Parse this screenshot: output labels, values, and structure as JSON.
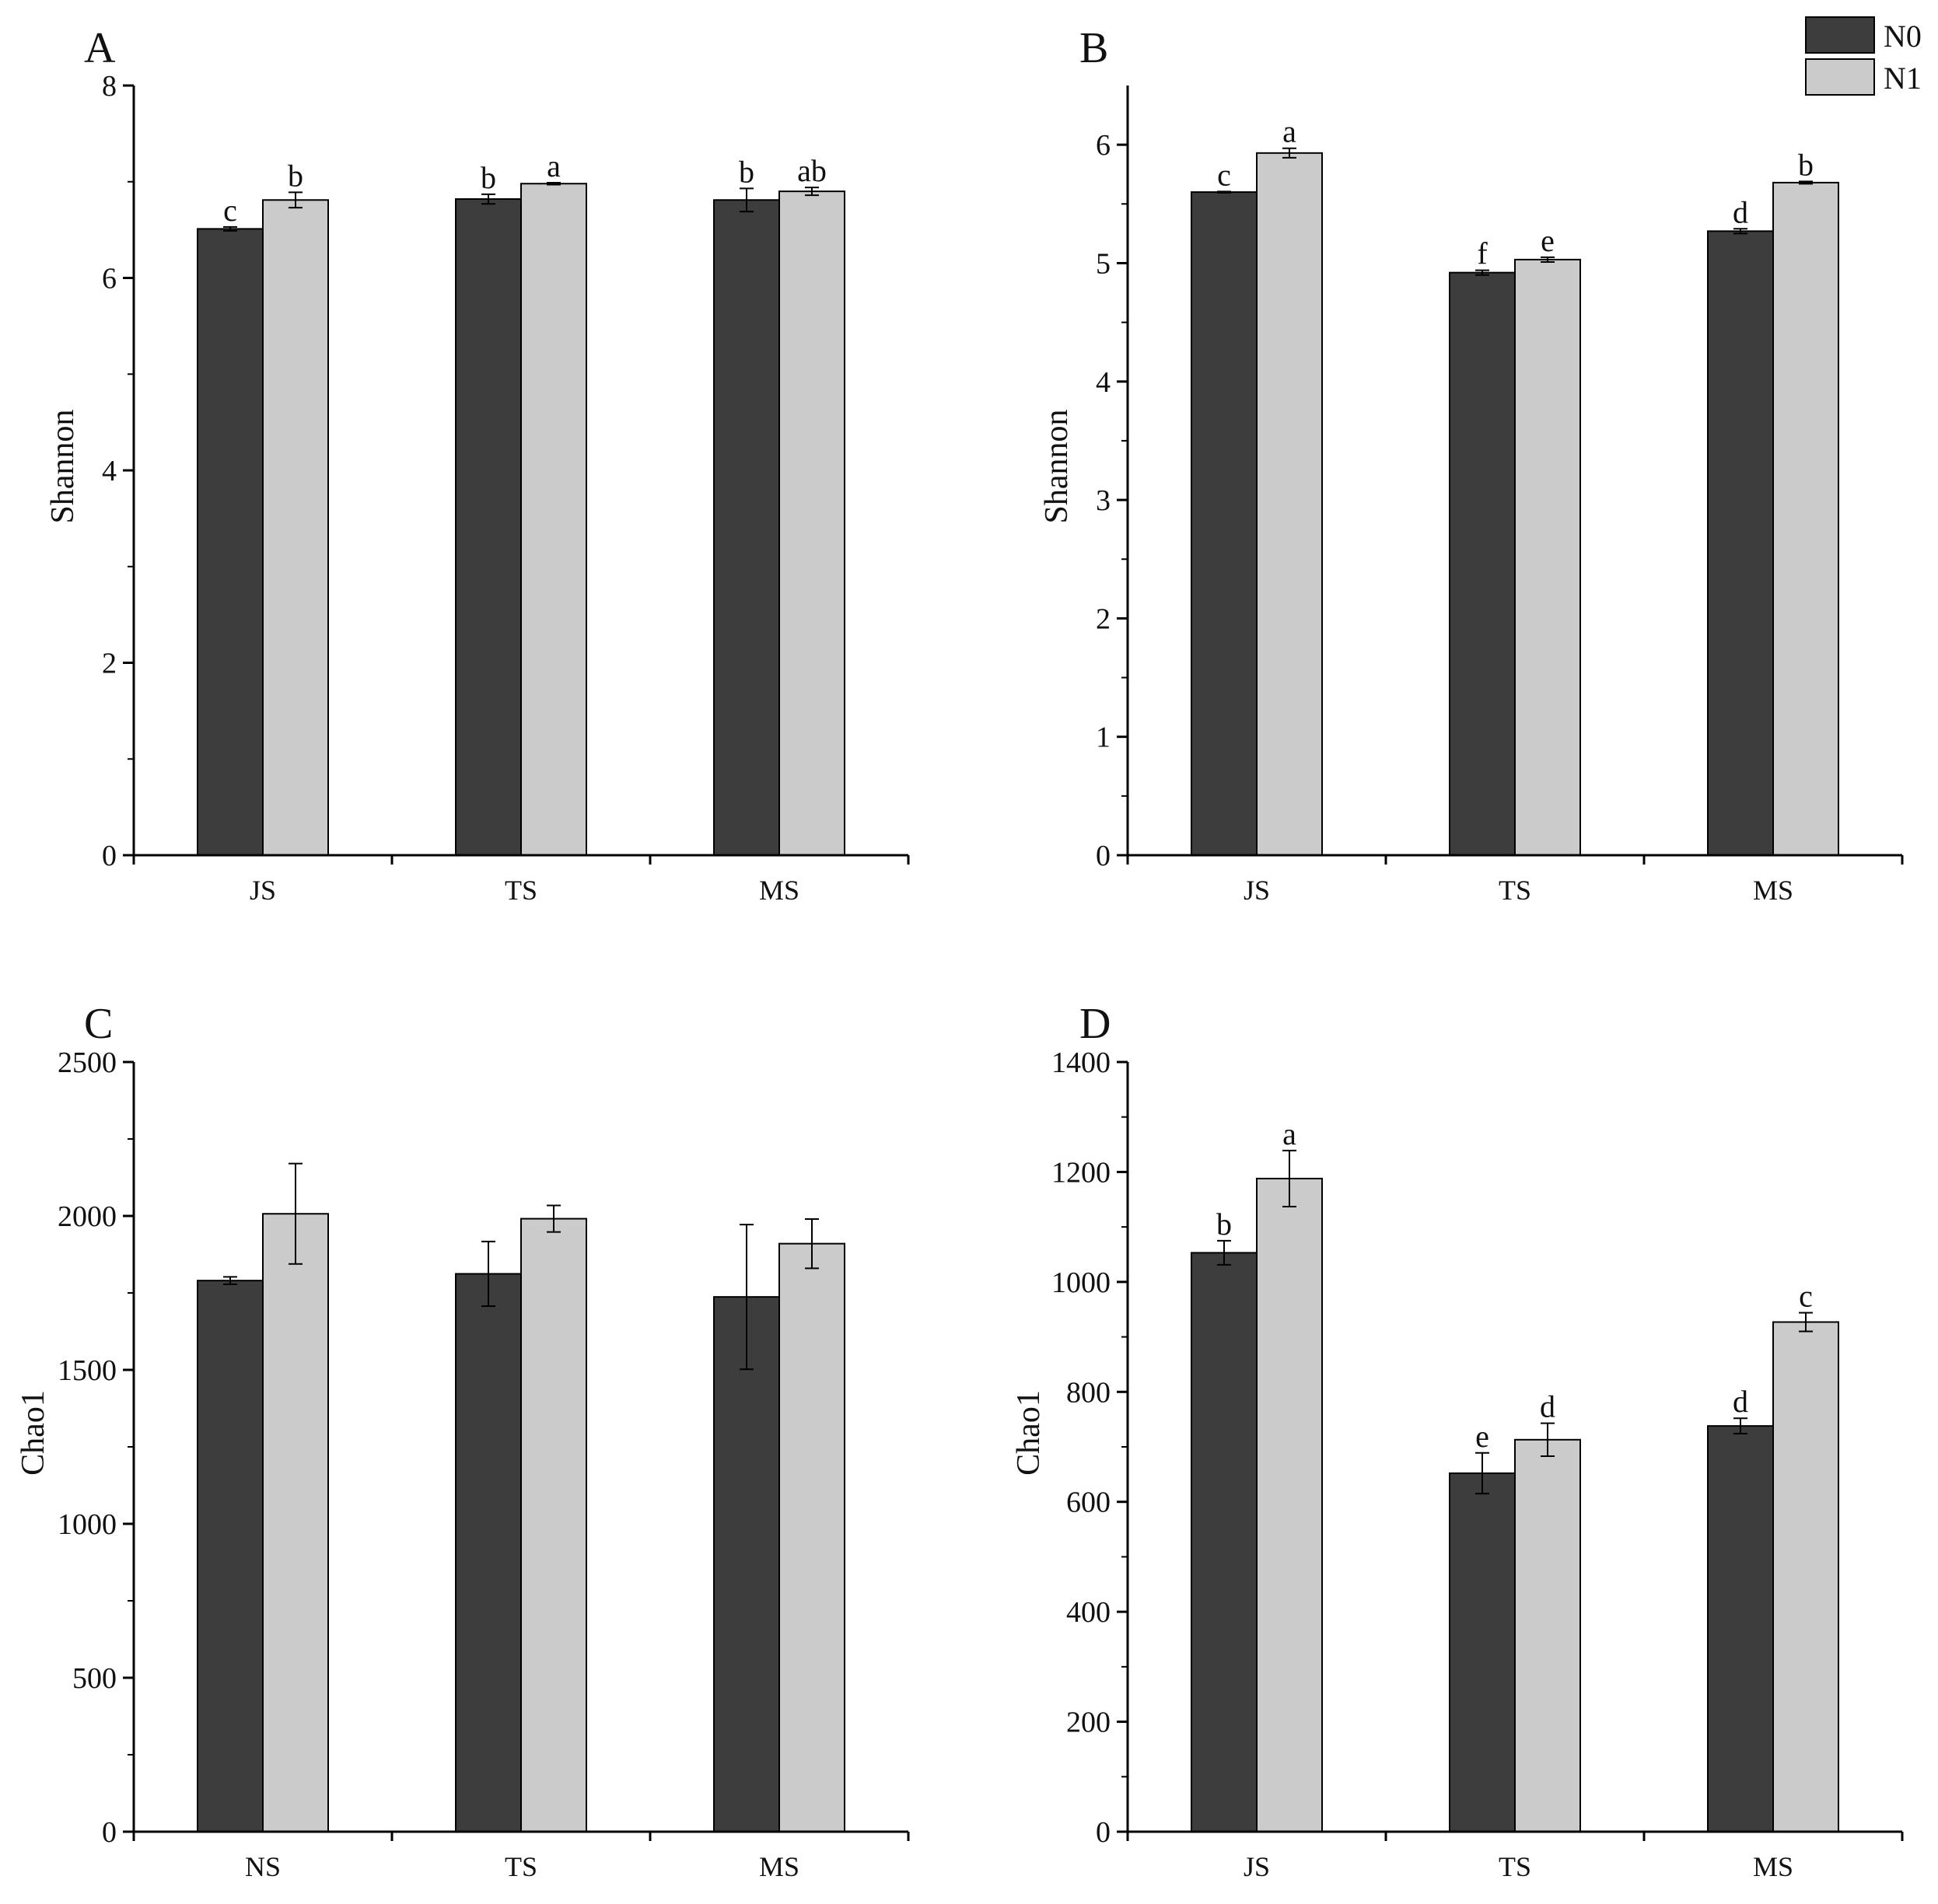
{
  "legend": [
    {
      "label": "N0",
      "color": "#3d3d3d"
    },
    {
      "label": "N1",
      "color": "#cbcbcb"
    }
  ],
  "colors": {
    "n0": "#3d3d3d",
    "n1": "#cbcbcb",
    "axis": "#000000"
  },
  "chart_data": [
    {
      "panel": "A",
      "type": "bar",
      "ylabel": "Shannon",
      "ylim": [
        0,
        8
      ],
      "yticks": [
        0,
        2,
        4,
        6,
        8
      ],
      "categories": [
        "JS",
        "TS",
        "MS"
      ],
      "series": [
        {
          "name": "N0",
          "values": [
            6.51,
            6.82,
            6.81
          ],
          "errors": [
            0.02,
            0.05,
            0.12
          ],
          "sig": [
            "c",
            "b",
            "b"
          ]
        },
        {
          "name": "N1",
          "values": [
            6.81,
            6.98,
            6.9
          ],
          "errors": [
            0.08,
            0.01,
            0.04
          ],
          "sig": [
            "b",
            "a",
            "ab"
          ]
        }
      ]
    },
    {
      "panel": "B",
      "type": "bar",
      "ylabel": "Shannon",
      "ylim": [
        0,
        6.5
      ],
      "yticks": [
        0,
        1,
        2,
        3,
        4,
        5,
        6
      ],
      "categories": [
        "JS",
        "TS",
        "MS"
      ],
      "series": [
        {
          "name": "N0",
          "values": [
            5.6,
            4.92,
            5.27
          ],
          "errors": [
            0.005,
            0.02,
            0.02
          ],
          "sig": [
            "c",
            "f",
            "d"
          ]
        },
        {
          "name": "N1",
          "values": [
            5.93,
            5.03,
            5.68
          ],
          "errors": [
            0.04,
            0.02,
            0.01
          ],
          "sig": [
            "a",
            "e",
            "b"
          ]
        }
      ]
    },
    {
      "panel": "C",
      "type": "bar",
      "ylabel": "Chao1",
      "ylim": [
        0,
        2500
      ],
      "yticks": [
        0,
        500,
        1000,
        1500,
        2000,
        2500
      ],
      "categories": [
        "NS",
        "TS",
        "MS"
      ],
      "series": [
        {
          "name": "N0",
          "values": [
            1790,
            1812,
            1737
          ],
          "errors": [
            12,
            105,
            235
          ],
          "sig": [
            "",
            "",
            ""
          ]
        },
        {
          "name": "N1",
          "values": [
            2007,
            1991,
            1910
          ],
          "errors": [
            163,
            43,
            80
          ],
          "sig": [
            "",
            "",
            ""
          ]
        }
      ]
    },
    {
      "panel": "D",
      "type": "bar",
      "ylabel": "Chao1",
      "ylim": [
        0,
        1400
      ],
      "yticks": [
        0,
        200,
        400,
        600,
        800,
        1000,
        1200,
        1400
      ],
      "categories": [
        "JS",
        "TS",
        "MS"
      ],
      "series": [
        {
          "name": "N0",
          "values": [
            1053,
            652,
            738
          ],
          "errors": [
            22,
            37,
            14
          ],
          "sig": [
            "b",
            "e",
            "d"
          ]
        },
        {
          "name": "N1",
          "values": [
            1188,
            713,
            927
          ],
          "errors": [
            51,
            30,
            17
          ],
          "sig": [
            "a",
            "d",
            "c"
          ]
        }
      ]
    }
  ]
}
